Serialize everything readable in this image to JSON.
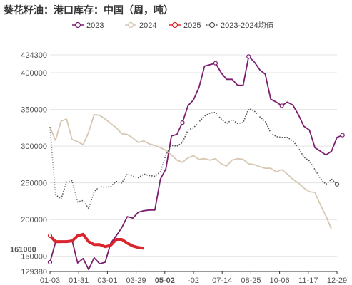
{
  "title": "葵花籽油：港口库存：中国（周，吨）",
  "chart_data": {
    "type": "line",
    "x_ticks": [
      "01-03",
      "01-31",
      "03-01",
      "03-29",
      "05-02",
      "-02",
      "07-14",
      "08-25",
      "10-06",
      "11-17",
      "12-29"
    ],
    "highlight_x_tick": "05-02",
    "y_ticks": [
      150000,
      200000,
      250000,
      300000,
      350000,
      400000
    ],
    "y_extra_ticks": [
      129380,
      424300
    ],
    "ylim": [
      129380,
      424300
    ],
    "grid": true,
    "legend_position": "top",
    "value_label": "161000",
    "series": [
      {
        "name": "2023",
        "color": "#7b1f6e",
        "style": "solid",
        "markers": true,
        "points": [
          [
            1,
            142000
          ],
          [
            2,
            169000
          ],
          [
            3,
            169000
          ],
          [
            4,
            170000
          ],
          [
            5,
            172000
          ],
          [
            6,
            141000
          ],
          [
            7,
            147000
          ],
          [
            8,
            132000
          ],
          [
            9,
            148000
          ],
          [
            10,
            140000
          ],
          [
            11,
            142000
          ],
          [
            12,
            168000
          ],
          [
            13,
            178000
          ],
          [
            14,
            189000
          ],
          [
            15,
            204000
          ],
          [
            16,
            202000
          ],
          [
            17,
            210000
          ],
          [
            18,
            212000
          ],
          [
            19,
            213000
          ],
          [
            20,
            213000
          ],
          [
            21,
            255000
          ],
          [
            22,
            269000
          ],
          [
            23,
            314000
          ],
          [
            24,
            316000
          ],
          [
            25,
            332000
          ],
          [
            26,
            355000
          ],
          [
            27,
            363000
          ],
          [
            28,
            380000
          ],
          [
            29,
            409000
          ],
          [
            30,
            411000
          ],
          [
            31,
            413000
          ],
          [
            32,
            400000
          ],
          [
            33,
            391000
          ],
          [
            34,
            391000
          ],
          [
            35,
            383000
          ],
          [
            36,
            383000
          ],
          [
            37,
            422000
          ],
          [
            38,
            415000
          ],
          [
            39,
            404000
          ],
          [
            40,
            398000
          ],
          [
            41,
            364000
          ],
          [
            42,
            360000
          ],
          [
            43,
            355000
          ],
          [
            44,
            360000
          ],
          [
            45,
            356000
          ],
          [
            46,
            343000
          ],
          [
            47,
            327000
          ],
          [
            48,
            322000
          ],
          [
            49,
            298000
          ],
          [
            50,
            293000
          ],
          [
            51,
            288000
          ],
          [
            52,
            293000
          ],
          [
            53,
            312000
          ],
          [
            54,
            315000
          ]
        ]
      },
      {
        "name": "2024",
        "color": "#d6c8b2",
        "style": "solid",
        "markers": false,
        "points": [
          [
            1,
            326000
          ],
          [
            2,
            308000
          ],
          [
            3,
            334000
          ],
          [
            4,
            337000
          ],
          [
            5,
            309000
          ],
          [
            6,
            306000
          ],
          [
            7,
            302000
          ],
          [
            8,
            319000
          ],
          [
            9,
            343000
          ],
          [
            10,
            342000
          ],
          [
            11,
            337000
          ],
          [
            12,
            331000
          ],
          [
            13,
            325000
          ],
          [
            14,
            317000
          ],
          [
            15,
            316000
          ],
          [
            16,
            311000
          ],
          [
            17,
            305000
          ],
          [
            18,
            307000
          ],
          [
            19,
            303000
          ],
          [
            20,
            301000
          ],
          [
            21,
            298000
          ],
          [
            22,
            294000
          ],
          [
            23,
            288000
          ],
          [
            24,
            281000
          ],
          [
            25,
            278000
          ],
          [
            26,
            284000
          ],
          [
            27,
            287000
          ],
          [
            28,
            282000
          ],
          [
            29,
            283000
          ],
          [
            30,
            281000
          ],
          [
            31,
            283000
          ],
          [
            32,
            276000
          ],
          [
            33,
            273000
          ],
          [
            34,
            281000
          ],
          [
            35,
            283000
          ],
          [
            36,
            282000
          ],
          [
            37,
            276000
          ],
          [
            38,
            275000
          ],
          [
            39,
            272000
          ],
          [
            40,
            270000
          ],
          [
            41,
            270000
          ],
          [
            42,
            265000
          ],
          [
            43,
            268000
          ],
          [
            44,
            262000
          ],
          [
            45,
            255000
          ],
          [
            46,
            250000
          ],
          [
            47,
            243000
          ],
          [
            48,
            238000
          ],
          [
            49,
            237000
          ],
          [
            50,
            220000
          ],
          [
            51,
            205000
          ],
          [
            52,
            187000
          ]
        ]
      },
      {
        "name": "2025",
        "color": "#d9262e",
        "style": "solid",
        "markers": false,
        "points": [
          [
            1,
            178000
          ],
          [
            2,
            170000
          ],
          [
            3,
            170000
          ],
          [
            4,
            170000
          ],
          [
            5,
            171000
          ],
          [
            6,
            178000
          ],
          [
            7,
            180000
          ],
          [
            8,
            170000
          ],
          [
            9,
            166000
          ],
          [
            10,
            166000
          ],
          [
            11,
            163000
          ],
          [
            12,
            165000
          ],
          [
            13,
            173000
          ],
          [
            14,
            173000
          ],
          [
            15,
            168000
          ],
          [
            16,
            164000
          ],
          [
            17,
            162000
          ],
          [
            18,
            161000
          ]
        ]
      },
      {
        "name": "2023-2024均值",
        "color": "#555555",
        "style": "dotted",
        "markers": false,
        "points": [
          [
            1,
            326000
          ],
          [
            2,
            234000
          ],
          [
            3,
            228000
          ],
          [
            4,
            251000
          ],
          [
            5,
            253000
          ],
          [
            6,
            224000
          ],
          [
            7,
            226000
          ],
          [
            8,
            215000
          ],
          [
            9,
            238000
          ],
          [
            10,
            245000
          ],
          [
            11,
            244000
          ],
          [
            12,
            245000
          ],
          [
            13,
            252000
          ],
          [
            14,
            250000
          ],
          [
            15,
            262000
          ],
          [
            16,
            259000
          ],
          [
            17,
            257000
          ],
          [
            18,
            262000
          ],
          [
            19,
            260000
          ],
          [
            20,
            259000
          ],
          [
            21,
            265000
          ],
          [
            22,
            288000
          ],
          [
            23,
            301000
          ],
          [
            24,
            300000
          ],
          [
            25,
            305000
          ],
          [
            26,
            322000
          ],
          [
            27,
            325000
          ],
          [
            28,
            333000
          ],
          [
            29,
            341000
          ],
          [
            30,
            345000
          ],
          [
            31,
            346000
          ],
          [
            32,
            337000
          ],
          [
            33,
            331000
          ],
          [
            34,
            336000
          ],
          [
            35,
            331000
          ],
          [
            36,
            332000
          ],
          [
            37,
            351000
          ],
          [
            38,
            348000
          ],
          [
            39,
            340000
          ],
          [
            40,
            334000
          ],
          [
            41,
            318000
          ],
          [
            42,
            313000
          ],
          [
            43,
            312000
          ],
          [
            44,
            312000
          ],
          [
            45,
            307000
          ],
          [
            46,
            298000
          ],
          [
            47,
            285000
          ],
          [
            48,
            280000
          ],
          [
            49,
            268000
          ],
          [
            50,
            256000
          ],
          [
            51,
            248000
          ],
          [
            52,
            255000
          ],
          [
            53,
            248000
          ]
        ]
      }
    ]
  }
}
